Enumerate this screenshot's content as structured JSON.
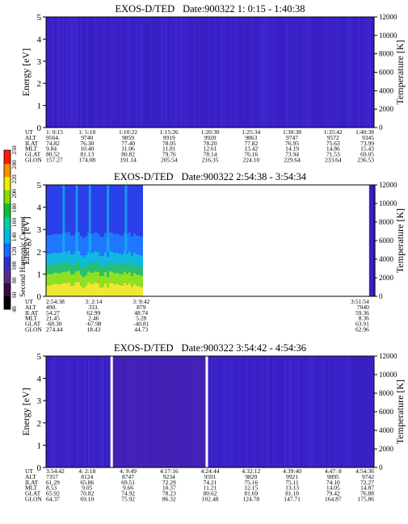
{
  "colorbar": {
    "label": "Second Harmonic Current",
    "ticks": [
      "40",
      "60",
      "80",
      "100",
      "120",
      "140",
      "160",
      "180",
      "200",
      "220",
      "240",
      "250"
    ],
    "colors": [
      "#000000",
      "#3a0a4a",
      "#5a2a8a",
      "#3030c8",
      "#1a6aff",
      "#00b8e8",
      "#00d0a8",
      "#10c030",
      "#80e000",
      "#e8f000",
      "#ff9000",
      "#ff1a00"
    ]
  },
  "chart_data": [
    {
      "type": "heatmap",
      "title": "EXOS-D/TED",
      "subtitle": "Date:900322  1: 0:15 - 1:40:38",
      "ylabel": "Energy [eV]",
      "y2label": "Temperature [K]",
      "ylim": [
        0,
        5
      ],
      "yticks": [
        "0",
        "1",
        "2",
        "3",
        "4",
        "5"
      ],
      "y2lim": [
        0,
        12000
      ],
      "y2ticks": [
        "0",
        "2000",
        "4000",
        "6000",
        "8000",
        "10000",
        "12000"
      ],
      "gaps": [],
      "data_ranges": [
        [
          0,
          1
        ]
      ],
      "rows": [
        {
          "label": "UT",
          "values": [
            "1: 0:15",
            "1: 5:18",
            "1:10:22",
            "1:15:26",
            "1:20:30",
            "1:25:34",
            "1:30:38",
            "1:35:42",
            "1:40:38"
          ]
        },
        {
          "label": "ALT",
          "values": [
            "9564.",
            "9740",
            "9859",
            "9919",
            "9920",
            "9863",
            "9747",
            "9572",
            "9345"
          ]
        },
        {
          "label": "ILAT",
          "values": [
            "74.82",
            "76.30",
            "77.40",
            "78.05",
            "78.20",
            "77.82",
            "76.95",
            "75.63",
            "73.99"
          ]
        },
        {
          "label": "MLT",
          "values": [
            "9.84",
            "10.40",
            "11.06",
            "11.81",
            "12.61",
            "13.42",
            "14.19",
            "14.86",
            "15.43"
          ]
        },
        {
          "label": "GLAT",
          "values": [
            "80.52",
            "81.13",
            "80.82",
            "79.76",
            "78.14",
            "76.16",
            "73.94",
            "71.53",
            "69.05"
          ]
        },
        {
          "label": "GLON",
          "values": [
            "157.27",
            "174.08",
            "191.14",
            "205.54",
            "216.35",
            "224.10",
            "229.64",
            "233.64",
            "236.53"
          ]
        }
      ]
    },
    {
      "type": "heatmap",
      "title": "EXOS-D/TED",
      "subtitle": "Date:900322  2:54:38 - 3:54:34",
      "ylabel": "Energy [eV]",
      "y2label": "Temperature [K]",
      "ylim": [
        0,
        5
      ],
      "yticks": [
        "0",
        "1",
        "2",
        "3",
        "4",
        "5"
      ],
      "y2lim": [
        0,
        12000
      ],
      "y2ticks": [
        "0",
        "2000",
        "4000",
        "6000",
        "8000",
        "10000",
        "12000"
      ],
      "gaps": [],
      "data_ranges": [
        [
          0,
          0.29
        ],
        [
          0.985,
          1
        ]
      ],
      "rows": [
        {
          "label": "UT",
          "values": [
            "2:54:38",
            "3: 2:14",
            "3: 9:42",
            "3:51:54"
          ]
        },
        {
          "label": "ALT",
          "values": [
            "490.",
            "333.",
            "879",
            "7040"
          ]
        },
        {
          "label": "ILAT",
          "values": [
            "54.27",
            "62.99",
            "48.74",
            "59.36"
          ]
        },
        {
          "label": "MLT",
          "values": [
            "21.45",
            "2.46",
            "5.28",
            "8.36"
          ]
        },
        {
          "label": "GLAT",
          "values": [
            "-68.30",
            "-67.98",
            "-40.81",
            "63.91"
          ]
        },
        {
          "label": "GLON",
          "values": [
            "274.44",
            "18.43",
            "44.73",
            "62.96"
          ]
        }
      ]
    },
    {
      "type": "heatmap",
      "title": "EXOS-D/TED",
      "subtitle": "Date:900322  3:54:42 - 4:54:36",
      "ylabel": "Energy [eV]",
      "y2label": "Temperature [K]",
      "ylim": [
        0,
        5
      ],
      "yticks": [
        "0",
        "1",
        "2",
        "3",
        "4",
        "5"
      ],
      "y2lim": [
        0,
        12000
      ],
      "y2ticks": [
        "0",
        "2000",
        "4000",
        "6000",
        "8000",
        "10000",
        "12000"
      ],
      "gaps": [
        0.2,
        0.49
      ],
      "data_ranges": [
        [
          0,
          1
        ]
      ],
      "rows": [
        {
          "label": "UT",
          "values": [
            "3:54:42",
            "4: 2:18",
            "4: 9:49",
            "4:17:16",
            "4:24:44",
            "4:32:12",
            "4:39:40",
            "4:47: 8",
            "4:54:36"
          ]
        },
        {
          "label": "ALT",
          "values": [
            "7357",
            "8124",
            "8747",
            "9234",
            "9591",
            "9820",
            "9921",
            "9895",
            "9742"
          ]
        },
        {
          "label": "ILAT",
          "values": [
            "61.29",
            "65.86",
            "69.51",
            "72.29",
            "74.21",
            "75.16",
            "75.11",
            "74.10",
            "72.27"
          ]
        },
        {
          "label": "MLT",
          "values": [
            "8.53",
            "9.05",
            "9.66",
            "10.37",
            "11.21",
            "12.15",
            "13.13",
            "14.05",
            "14.87"
          ]
        },
        {
          "label": "GLAT",
          "values": [
            "65.92",
            "70.82",
            "74.92",
            "78.23",
            "80.62",
            "81.69",
            "81.18",
            "79.42",
            "76.88"
          ]
        },
        {
          "label": "GLON",
          "values": [
            "64.37",
            "69.10",
            "75.92",
            "86.32",
            "102.48",
            "124.78",
            "147.71",
            "164.87",
            "175.86"
          ]
        }
      ]
    }
  ]
}
